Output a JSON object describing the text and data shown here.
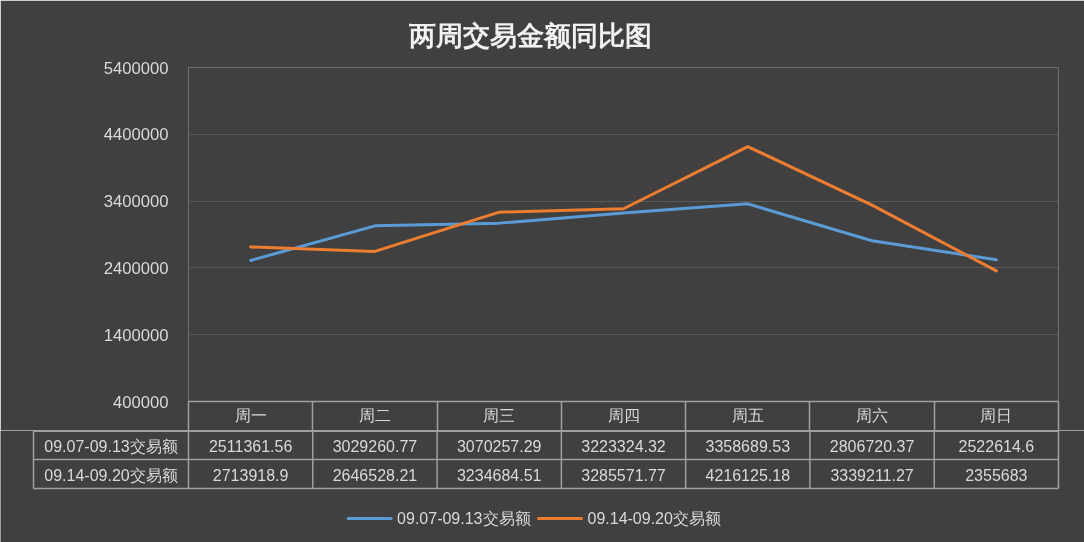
{
  "chart_data": {
    "type": "line",
    "title": "两周交易金额同比图",
    "categories": [
      "周一",
      "周二",
      "周三",
      "周四",
      "周五",
      "周六",
      "周日"
    ],
    "series": [
      {
        "name": "09.07-09.13交易额",
        "color": "#5b9bd5",
        "values": [
          2511361.56,
          3029260.77,
          3070257.29,
          3223324.32,
          3358689.53,
          2806720.37,
          2522614.6
        ],
        "value_labels": [
          "2511361.56",
          "3029260.77",
          "3070257.29",
          "3223324.32",
          "3358689.53",
          "2806720.37",
          "2522614.6"
        ]
      },
      {
        "name": "09.14-09.20交易额",
        "color": "#ed7d31",
        "values": [
          2713918.9,
          2646528.21,
          3234684.51,
          3285571.77,
          4216125.18,
          3339211.27,
          2355683
        ],
        "value_labels": [
          "2713918.9",
          "2646528.21",
          "3234684.51",
          "3285571.77",
          "4216125.18",
          "3339211.27",
          "2355683"
        ]
      }
    ],
    "ylim": [
      400000,
      5400000
    ],
    "yticks": [
      400000,
      1400000,
      2400000,
      3400000,
      4400000,
      5400000
    ],
    "grid": "y",
    "legend": "bottom"
  }
}
